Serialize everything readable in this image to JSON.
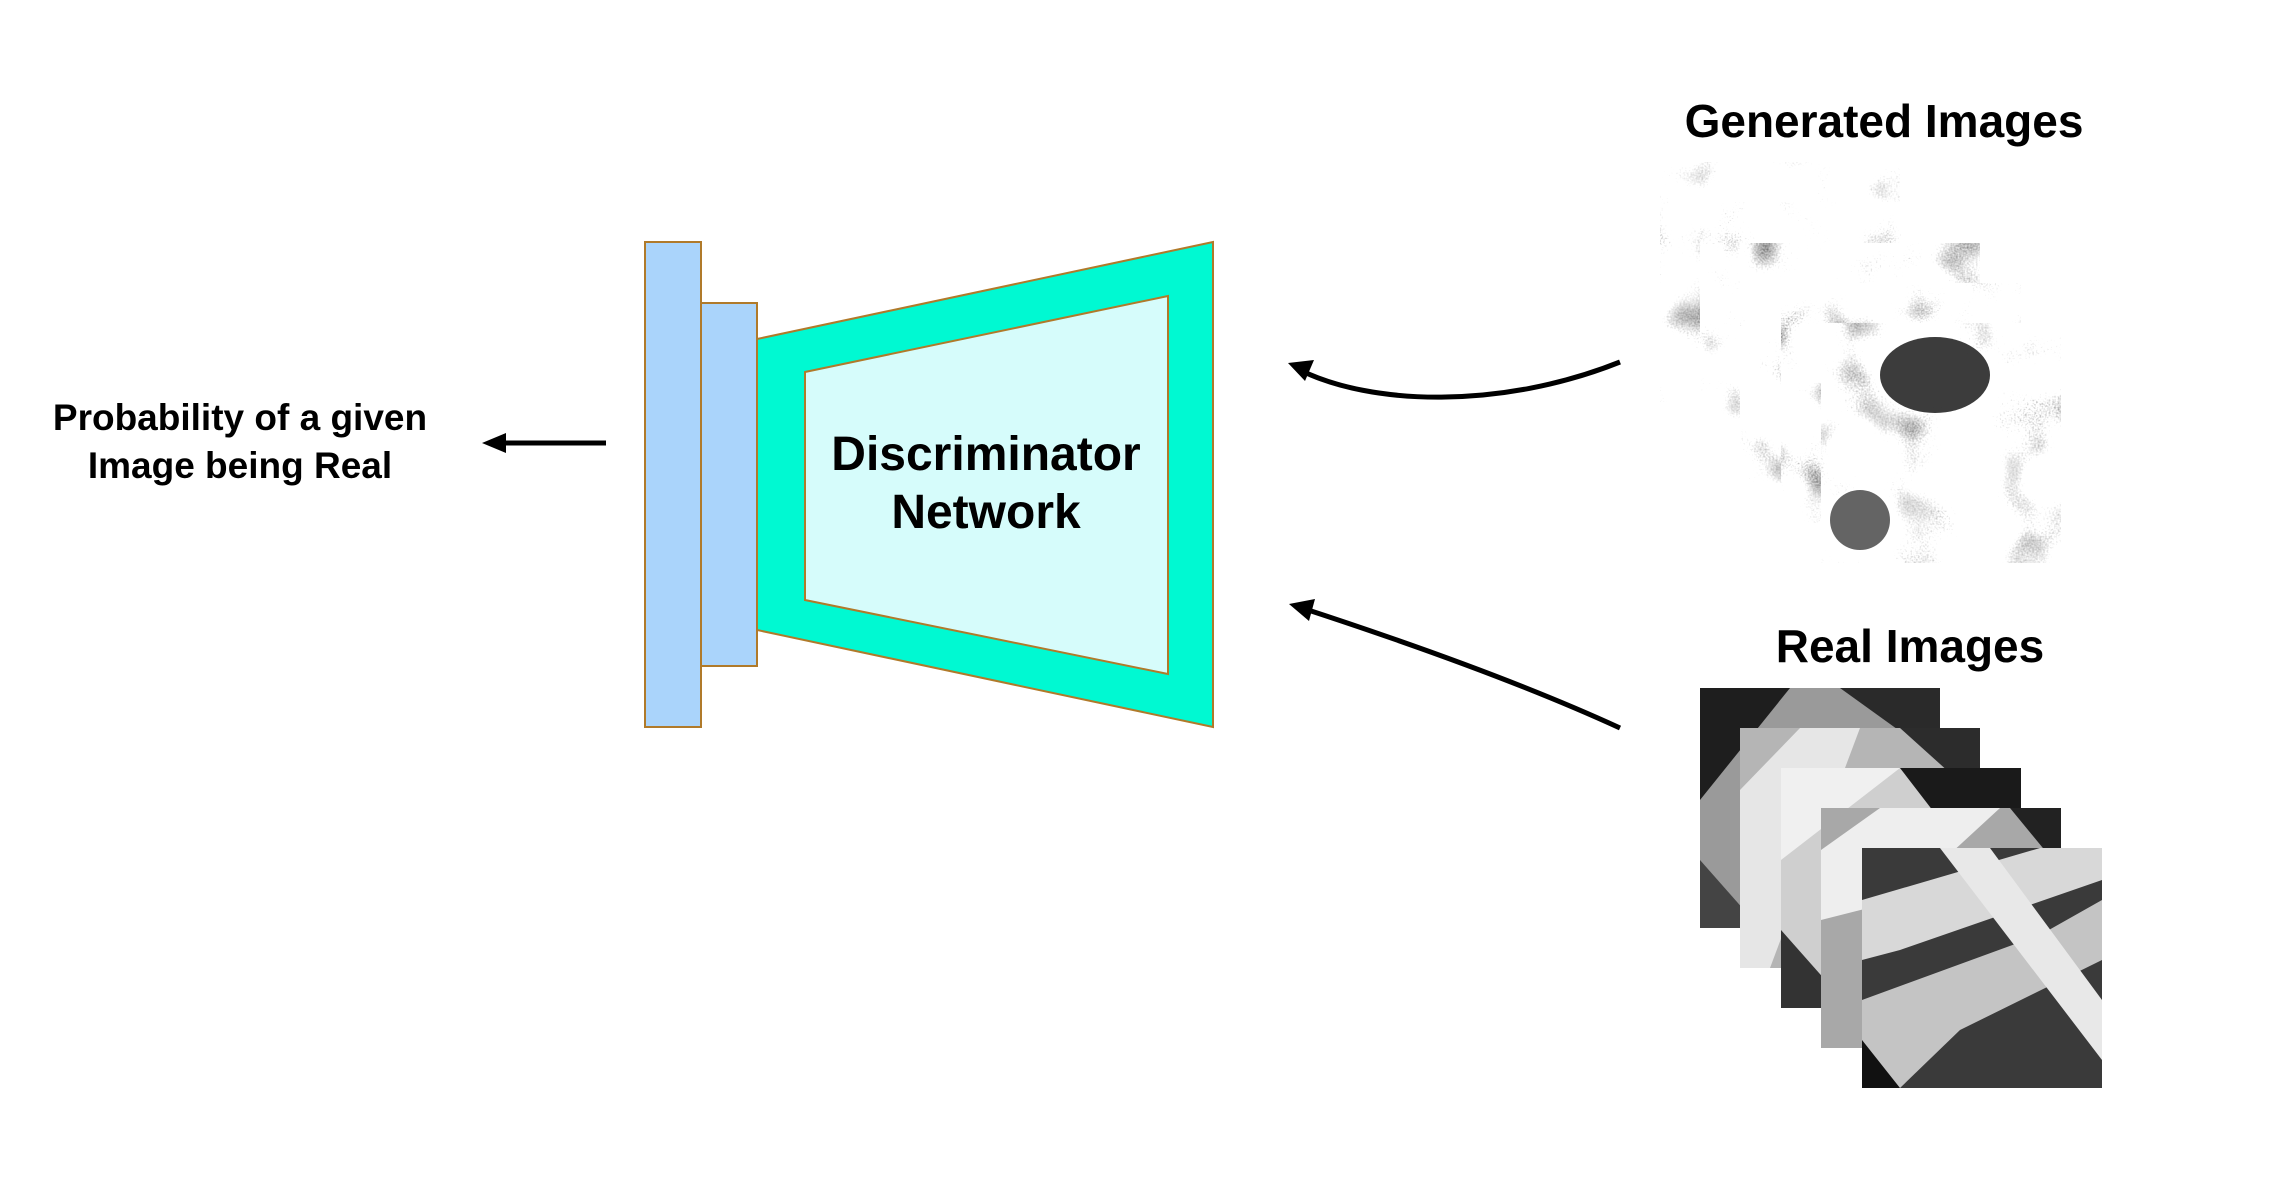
{
  "output_label": {
    "line1": "Probability of a given",
    "line2": "Image being Real"
  },
  "network_label": {
    "line1": "Discriminator",
    "line2": "Network"
  },
  "generated_label": "Generated Images",
  "real_label": "Real Images",
  "colors": {
    "layer_fill": "#aad4fb",
    "layer_stroke": "#b07a2a",
    "trapezoid_outer": "#00f9d2",
    "trapezoid_inner": "#d6fcfb",
    "arrow": "#000000"
  }
}
